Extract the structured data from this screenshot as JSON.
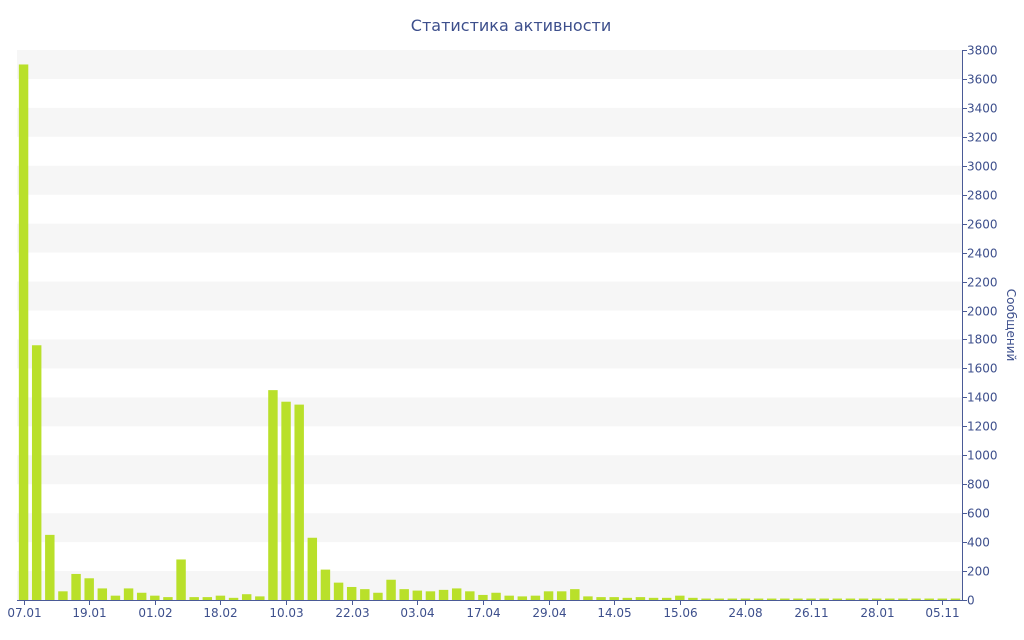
{
  "chart_data": {
    "type": "bar",
    "title": "Статистика активности",
    "xlabel": "",
    "ylabel": "Сообщений",
    "ylim": [
      0,
      3800
    ],
    "y_ticks": [
      0,
      200,
      400,
      600,
      800,
      1000,
      1200,
      1400,
      1600,
      1800,
      2000,
      2200,
      2400,
      2600,
      2800,
      3000,
      3200,
      3400,
      3600,
      3800
    ],
    "y_axis_position": "right",
    "grid": "alternating horizontal bands",
    "x_tick_labels": [
      {
        "label": "07.01",
        "index": 0
      },
      {
        "label": "19.01",
        "index": 5
      },
      {
        "label": "01.02",
        "index": 10
      },
      {
        "label": "18.02",
        "index": 15
      },
      {
        "label": "10.03",
        "index": 20
      },
      {
        "label": "22.03",
        "index": 25
      },
      {
        "label": "03.04",
        "index": 30
      },
      {
        "label": "17.04",
        "index": 35
      },
      {
        "label": "29.04",
        "index": 40
      },
      {
        "label": "14.05",
        "index": 45
      },
      {
        "label": "15.06",
        "index": 50
      },
      {
        "label": "24.08",
        "index": 55
      },
      {
        "label": "26.11",
        "index": 60
      },
      {
        "label": "28.01",
        "index": 65
      },
      {
        "label": "05.11",
        "index": 70
      }
    ],
    "values": [
      3700,
      1760,
      450,
      60,
      180,
      150,
      80,
      30,
      80,
      50,
      30,
      20,
      280,
      20,
      20,
      30,
      15,
      40,
      25,
      1450,
      1370,
      1350,
      430,
      210,
      120,
      90,
      75,
      50,
      140,
      75,
      65,
      60,
      70,
      80,
      60,
      35,
      50,
      30,
      25,
      30,
      60,
      60,
      75,
      25,
      20,
      20,
      15,
      20,
      15,
      15,
      30,
      15,
      10,
      10,
      10,
      10,
      10,
      10,
      10,
      10,
      10,
      10,
      10,
      10,
      10,
      10,
      10,
      10,
      10,
      10,
      10,
      10
    ],
    "bar_color": "#b9e02a",
    "text_color": "#3d4f8c",
    "axis_color": "#4a5a96",
    "band_color": "#f6f6f6"
  }
}
